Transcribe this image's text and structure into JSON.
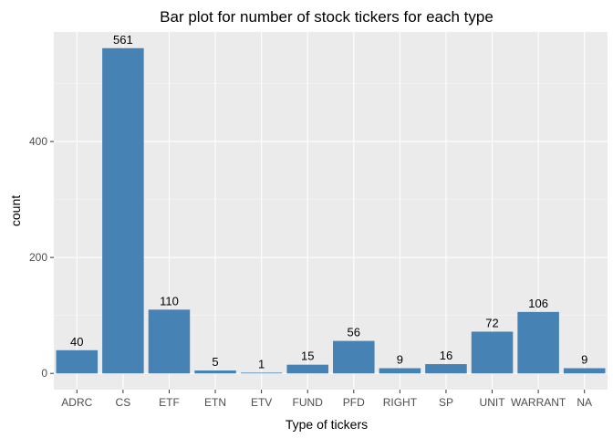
{
  "chart_data": {
    "type": "bar",
    "title": "Bar plot for number of stock tickers for each type",
    "xlabel": "Type of tickers",
    "ylabel": "count",
    "categories": [
      "ADRC",
      "CS",
      "ETF",
      "ETN",
      "ETV",
      "FUND",
      "PFD",
      "RIGHT",
      "SP",
      "UNIT",
      "WARRANT",
      "NA"
    ],
    "values": [
      40,
      561,
      110,
      5,
      1,
      15,
      56,
      9,
      16,
      72,
      106,
      9
    ],
    "yticks": [
      0,
      200,
      400
    ],
    "ylim": [
      -28,
      589
    ],
    "bar_color": "#4682B4",
    "panel_background": "#EBEBEB",
    "grid": true,
    "legend": "none"
  }
}
